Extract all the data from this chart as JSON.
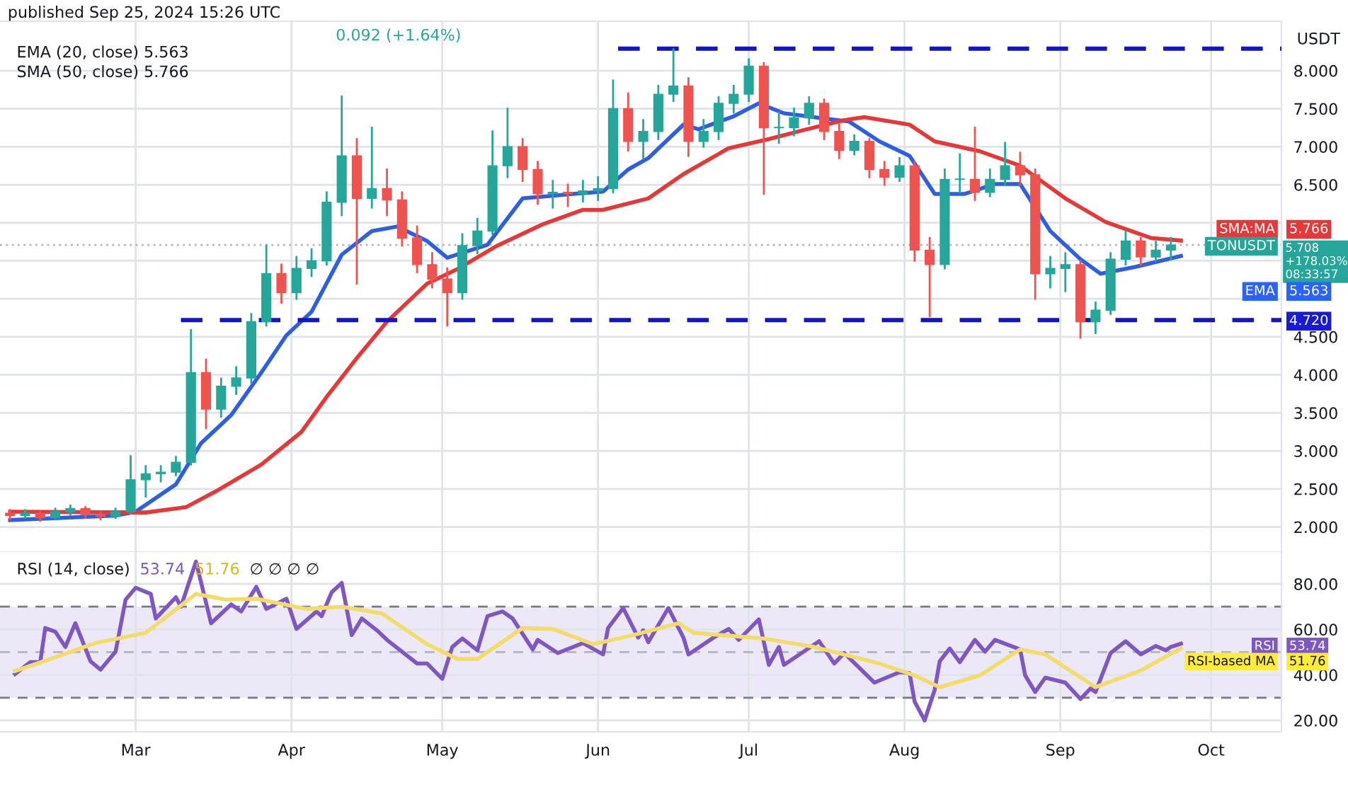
{
  "chart_data": [
    {
      "type": "candlestick",
      "x": [
        "2024-02-05",
        "2024-02-08",
        "2024-02-11",
        "2024-02-14",
        "2024-02-17",
        "2024-02-20",
        "2024-02-23",
        "2024-02-26",
        "2024-02-29",
        "2024-03-03",
        "2024-03-06",
        "2024-03-09",
        "2024-03-12",
        "2024-03-15",
        "2024-03-18",
        "2024-03-21",
        "2024-03-24",
        "2024-03-27",
        "2024-03-30",
        "2024-04-02",
        "2024-04-05",
        "2024-04-08",
        "2024-04-11",
        "2024-04-14",
        "2024-04-17",
        "2024-04-20",
        "2024-04-23",
        "2024-04-26",
        "2024-04-29",
        "2024-05-02",
        "2024-05-05",
        "2024-05-08",
        "2024-05-11",
        "2024-05-14",
        "2024-05-17",
        "2024-05-20",
        "2024-05-23",
        "2024-05-26",
        "2024-05-29",
        "2024-06-01",
        "2024-06-04",
        "2024-06-07",
        "2024-06-10",
        "2024-06-13",
        "2024-06-16",
        "2024-06-19",
        "2024-06-22",
        "2024-06-25",
        "2024-06-28",
        "2024-07-01",
        "2024-07-04",
        "2024-07-07",
        "2024-07-10",
        "2024-07-13",
        "2024-07-16",
        "2024-07-19",
        "2024-07-22",
        "2024-07-25",
        "2024-07-28",
        "2024-07-31",
        "2024-08-03",
        "2024-08-06",
        "2024-08-09",
        "2024-08-12",
        "2024-08-15",
        "2024-08-18",
        "2024-08-21",
        "2024-08-24",
        "2024-08-27",
        "2024-08-30",
        "2024-09-02",
        "2024-09-05",
        "2024-09-08",
        "2024-09-11",
        "2024-09-14",
        "2024-09-17",
        "2024-09-20",
        "2024-09-23"
      ],
      "ohlc": [
        [
          2.18,
          2.22,
          2.1,
          2.15
        ],
        [
          2.15,
          2.22,
          2.12,
          2.18
        ],
        [
          2.18,
          2.2,
          2.08,
          2.12
        ],
        [
          2.12,
          2.24,
          2.1,
          2.2
        ],
        [
          2.2,
          2.28,
          2.16,
          2.24
        ],
        [
          2.24,
          2.26,
          2.12,
          2.16
        ],
        [
          2.16,
          2.2,
          2.1,
          2.14
        ],
        [
          2.14,
          2.24,
          2.12,
          2.2
        ],
        [
          2.2,
          2.93,
          2.18,
          2.62
        ],
        [
          2.62,
          2.8,
          2.4,
          2.7
        ],
        [
          2.7,
          2.8,
          2.6,
          2.72
        ],
        [
          2.72,
          2.92,
          2.68,
          2.85
        ],
        [
          2.85,
          4.59,
          2.82,
          4.03
        ],
        [
          4.03,
          4.2,
          3.3,
          3.55
        ],
        [
          3.55,
          3.95,
          3.45,
          3.85
        ],
        [
          3.85,
          4.1,
          3.75,
          3.96
        ],
        [
          3.96,
          4.8,
          3.9,
          4.7
        ],
        [
          4.7,
          5.7,
          4.65,
          5.33
        ],
        [
          5.33,
          5.45,
          4.95,
          5.08
        ],
        [
          5.08,
          5.55,
          5.0,
          5.4
        ],
        [
          5.4,
          5.65,
          5.3,
          5.5
        ],
        [
          5.5,
          6.4,
          5.45,
          6.27
        ],
        [
          6.27,
          7.66,
          6.1,
          6.88
        ],
        [
          6.88,
          7.1,
          5.2,
          6.32
        ],
        [
          6.32,
          7.25,
          6.2,
          6.45
        ],
        [
          6.45,
          6.7,
          6.1,
          6.3
        ],
        [
          6.3,
          6.4,
          5.7,
          5.8
        ],
        [
          5.8,
          5.95,
          5.35,
          5.45
        ],
        [
          5.45,
          5.6,
          5.15,
          5.26
        ],
        [
          5.26,
          5.4,
          4.65,
          5.08
        ],
        [
          5.08,
          5.85,
          5.0,
          5.7
        ],
        [
          5.7,
          6.05,
          5.6,
          5.89
        ],
        [
          5.89,
          7.2,
          5.85,
          6.75
        ],
        [
          6.75,
          7.5,
          6.6,
          7.0
        ],
        [
          7.0,
          7.1,
          6.55,
          6.7
        ],
        [
          6.7,
          6.8,
          6.25,
          6.38
        ],
        [
          6.38,
          6.55,
          6.2,
          6.4
        ],
        [
          6.4,
          6.5,
          6.22,
          6.38
        ],
        [
          6.38,
          6.55,
          6.28,
          6.42
        ],
        [
          6.42,
          6.6,
          6.3,
          6.45
        ],
        [
          6.45,
          7.87,
          6.4,
          7.5
        ],
        [
          7.5,
          7.7,
          6.95,
          7.07
        ],
        [
          7.07,
          7.35,
          6.85,
          7.2
        ],
        [
          7.2,
          7.8,
          7.1,
          7.69
        ],
        [
          7.69,
          8.28,
          7.6,
          7.8
        ],
        [
          7.8,
          7.9,
          6.88,
          7.07
        ],
        [
          7.07,
          7.35,
          7.0,
          7.2
        ],
        [
          7.2,
          7.65,
          7.1,
          7.57
        ],
        [
          7.57,
          7.8,
          7.45,
          7.69
        ],
        [
          7.69,
          8.15,
          7.6,
          8.06
        ],
        [
          8.06,
          8.1,
          6.38,
          7.25
        ],
        [
          7.25,
          7.45,
          7.05,
          7.25
        ],
        [
          7.25,
          7.5,
          7.15,
          7.38
        ],
        [
          7.38,
          7.65,
          7.3,
          7.57
        ],
        [
          7.57,
          7.62,
          7.1,
          7.2
        ],
        [
          7.2,
          7.3,
          6.85,
          6.95
        ],
        [
          6.95,
          7.15,
          6.9,
          7.07
        ],
        [
          7.07,
          7.1,
          6.6,
          6.7
        ],
        [
          6.7,
          6.8,
          6.5,
          6.6
        ],
        [
          6.6,
          6.85,
          6.55,
          6.75
        ],
        [
          6.75,
          6.8,
          5.5,
          5.64
        ],
        [
          5.64,
          5.8,
          4.77,
          5.45
        ],
        [
          5.45,
          6.7,
          5.4,
          6.57
        ],
        [
          6.57,
          6.9,
          6.4,
          6.57
        ],
        [
          6.57,
          7.25,
          6.3,
          6.4
        ],
        [
          6.4,
          6.7,
          6.35,
          6.57
        ],
        [
          6.57,
          7.05,
          6.5,
          6.75
        ],
        [
          6.75,
          6.92,
          6.5,
          6.63
        ],
        [
          6.63,
          6.7,
          5.0,
          5.33
        ],
        [
          5.33,
          5.55,
          5.15,
          5.4
        ],
        [
          5.4,
          5.6,
          5.1,
          5.45
        ],
        [
          5.45,
          5.5,
          4.49,
          4.7
        ],
        [
          4.7,
          4.95,
          4.55,
          4.85
        ],
        [
          4.85,
          5.6,
          4.8,
          5.52
        ],
        [
          5.52,
          5.89,
          5.45,
          5.76
        ],
        [
          5.76,
          5.8,
          5.45,
          5.55
        ],
        [
          5.55,
          5.75,
          5.5,
          5.64
        ],
        [
          5.64,
          5.8,
          5.52,
          5.708
        ]
      ],
      "colors": [
        "#ef5350",
        "#26a69a",
        "#ef5350",
        "#26a69a",
        "#26a69a",
        "#ef5350",
        "#ef5350",
        "#26a69a",
        "#26a69a",
        "#26a69a",
        "#26a69a",
        "#26a69a",
        "#26a69a",
        "#ef5350",
        "#26a69a",
        "#26a69a",
        "#26a69a",
        "#26a69a",
        "#ef5350",
        "#26a69a",
        "#26a69a",
        "#26a69a",
        "#26a69a",
        "#ef5350",
        "#26a69a",
        "#ef5350",
        "#ef5350",
        "#ef5350",
        "#ef5350",
        "#ef5350",
        "#26a69a",
        "#26a69a",
        "#26a69a",
        "#26a69a",
        "#ef5350",
        "#ef5350",
        "#26a69a",
        "#ef5350",
        "#26a69a",
        "#26a69a",
        "#26a69a",
        "#ef5350",
        "#26a69a",
        "#26a69a",
        "#26a69a",
        "#ef5350",
        "#26a69a",
        "#26a69a",
        "#26a69a",
        "#26a69a",
        "#ef5350",
        "#26a69a",
        "#26a69a",
        "#26a69a",
        "#ef5350",
        "#ef5350",
        "#26a69a",
        "#ef5350",
        "#ef5350",
        "#26a69a",
        "#ef5350",
        "#ef5350",
        "#26a69a",
        "#26a69a",
        "#ef5350",
        "#26a69a",
        "#26a69a",
        "#ef5350",
        "#ef5350",
        "#26a69a",
        "#26a69a",
        "#ef5350",
        "#26a69a",
        "#26a69a",
        "#26a69a",
        "#ef5350",
        "#26a69a",
        "#26a69a"
      ],
      "series": [
        {
          "type": "line",
          "color": "#2f5fe0",
          "x": [
            "2024-02-05",
            "2024-02-26",
            "2024-03-01",
            "2024-03-09",
            "2024-03-14",
            "2024-03-20",
            "2024-03-26",
            "2024-03-31",
            "2024-04-05",
            "2024-04-11",
            "2024-04-17",
            "2024-04-22",
            "2024-04-28",
            "2024-05-02",
            "2024-05-10",
            "2024-05-17",
            "2024-05-27",
            "2024-06-02",
            "2024-06-07",
            "2024-06-11",
            "2024-06-18",
            "2024-06-21",
            "2024-06-28",
            "2024-07-03",
            "2024-07-08",
            "2024-07-15",
            "2024-07-21",
            "2024-07-27",
            "2024-08-02",
            "2024-08-07",
            "2024-08-13",
            "2024-08-19",
            "2024-08-24",
            "2024-08-30",
            "2024-09-05",
            "2024-09-09",
            "2024-09-16",
            "2024-09-25"
          ],
          "values": [
            2.09,
            2.15,
            2.2,
            2.56,
            3.1,
            3.47,
            4.03,
            4.52,
            4.83,
            5.58,
            5.89,
            5.95,
            5.76,
            5.54,
            5.71,
            6.32,
            6.38,
            6.41,
            6.7,
            6.85,
            7.29,
            7.23,
            7.4,
            7.57,
            7.44,
            7.38,
            7.33,
            7.07,
            6.88,
            6.38,
            6.38,
            6.51,
            6.51,
            5.89,
            5.52,
            5.33,
            5.42,
            5.563
          ]
        },
        {
          "type": "line",
          "color": "#e53939",
          "x": [
            "2024-02-05",
            "2024-03-03",
            "2024-03-11",
            "2024-03-17",
            "2024-03-26",
            "2024-04-03",
            "2024-04-08",
            "2024-04-14",
            "2024-04-20",
            "2024-04-28",
            "2024-05-04",
            "2024-05-12",
            "2024-05-21",
            "2024-05-29",
            "2024-06-02",
            "2024-06-11",
            "2024-06-18",
            "2024-06-27",
            "2024-07-05",
            "2024-07-12",
            "2024-07-20",
            "2024-07-24",
            "2024-08-02",
            "2024-08-07",
            "2024-08-16",
            "2024-08-24",
            "2024-09-02",
            "2024-09-10",
            "2024-09-19",
            "2024-09-25"
          ],
          "values": [
            2.2,
            2.19,
            2.26,
            2.47,
            2.82,
            3.25,
            3.71,
            4.22,
            4.7,
            5.2,
            5.39,
            5.7,
            5.98,
            6.17,
            6.17,
            6.32,
            6.64,
            6.98,
            7.1,
            7.22,
            7.35,
            7.39,
            7.29,
            7.07,
            6.94,
            6.75,
            6.32,
            6.01,
            5.8,
            5.766
          ]
        },
        {
          "type": "line",
          "color": "#1515c8",
          "line_style": "dashed",
          "x": [
            "2024-03-10",
            "2024-10-15"
          ],
          "values": [
            4.72,
            4.72
          ]
        },
        {
          "type": "line",
          "color": "#1515c8",
          "line_style": "dashed",
          "x": [
            "2024-06-05",
            "2024-10-15"
          ],
          "values": [
            8.29,
            8.29
          ]
        }
      ],
      "ref_lines": [
        {
          "axis": "y",
          "value": 5.708,
          "color": "#b2b5be",
          "line_style": "dotted"
        }
      ],
      "xlim": [
        "2024-02-03",
        "2024-10-15"
      ],
      "ylim": [
        1.67,
        8.65
      ],
      "xticks": [
        {
          "value": "2024-03-01",
          "label": null
        },
        {
          "value": "2024-04-01",
          "label": null
        },
        {
          "value": "2024-05-01",
          "label": null
        },
        {
          "value": "2024-06-01",
          "label": null
        },
        {
          "value": "2024-07-01",
          "label": null
        },
        {
          "value": "2024-08-01",
          "label": null
        },
        {
          "value": "2024-09-01",
          "label": null
        },
        {
          "value": "2024-10-01",
          "label": null
        }
      ],
      "yticks": [
        {
          "value": 2,
          "label": "2.000"
        },
        {
          "value": 2.5,
          "label": "2.500"
        },
        {
          "value": 3,
          "label": "3.000"
        },
        {
          "value": 3.5,
          "label": "3.500"
        },
        {
          "value": 4,
          "label": "4.000"
        },
        {
          "value": 4.5,
          "label": "4.500"
        },
        {
          "value": 5,
          "label": null
        },
        {
          "value": 5.5,
          "label": null
        },
        {
          "value": 6,
          "label": null
        },
        {
          "value": 6.5,
          "label": "6.500"
        },
        {
          "value": 7,
          "label": "7.000"
        },
        {
          "value": 7.5,
          "label": "7.500"
        },
        {
          "value": 8,
          "label": "8.000"
        }
      ],
      "tick_labels": "y",
      "grid": true,
      "annotations": [
        "published Sep 25, 2024 15:26 UTC",
        "0.092 (+1.64%)",
        "EMA (20, close) 5.563",
        "SMA (50, close) 5.766",
        "USDT",
        "SMA:MA",
        "5.766",
        "TONUSDT",
        "5.708\n+178.03%\n08:33:57",
        "EMA",
        "5.563",
        "4.720"
      ]
    },
    {
      "type": "line",
      "series": [
        {
          "color": "#7e57c2",
          "x": [
            "2024-02-06",
            "2024-02-09",
            "2024-02-11",
            "2024-02-12",
            "2024-02-14",
            "2024-02-16",
            "2024-02-18",
            "2024-02-21",
            "2024-02-23",
            "2024-02-26",
            "2024-02-28",
            "2024-03-01",
            "2024-03-04",
            "2024-03-05",
            "2024-03-09",
            "2024-03-10",
            "2024-03-13",
            "2024-03-16",
            "2024-03-20",
            "2024-03-22",
            "2024-03-25",
            "2024-03-27",
            "2024-03-31",
            "2024-04-02",
            "2024-04-06",
            "2024-04-07",
            "2024-04-09",
            "2024-04-11",
            "2024-04-13",
            "2024-04-15",
            "2024-04-18",
            "2024-04-20",
            "2024-04-26",
            "2024-04-28",
            "2024-05-01",
            "2024-05-03",
            "2024-05-05",
            "2024-05-08",
            "2024-05-10",
            "2024-05-13",
            "2024-05-15",
            "2024-05-19",
            "2024-05-20",
            "2024-05-24",
            "2024-05-29",
            "2024-06-02",
            "2024-06-03",
            "2024-06-06",
            "2024-06-09",
            "2024-06-10",
            "2024-06-11",
            "2024-06-15",
            "2024-06-18",
            "2024-06-19",
            "2024-06-24",
            "2024-06-27",
            "2024-06-29",
            "2024-07-03",
            "2024-07-05",
            "2024-07-07",
            "2024-07-08",
            "2024-07-15",
            "2024-07-18",
            "2024-07-20",
            "2024-07-26",
            "2024-07-31",
            "2024-08-02",
            "2024-08-03",
            "2024-08-05",
            "2024-08-07",
            "2024-08-08",
            "2024-08-10",
            "2024-08-12",
            "2024-08-15",
            "2024-08-17",
            "2024-08-19",
            "2024-08-24",
            "2024-08-25",
            "2024-08-27",
            "2024-08-29",
            "2024-09-02",
            "2024-09-05",
            "2024-09-07",
            "2024-09-08",
            "2024-09-11",
            "2024-09-14",
            "2024-09-17",
            "2024-09-20",
            "2024-09-22",
            "2024-09-23",
            "2024-09-25"
          ],
          "values": [
            40.4,
            45.6,
            45.6,
            60.6,
            59,
            52.3,
            62.7,
            46,
            42.3,
            50.2,
            73.1,
            78.3,
            75.6,
            64.8,
            74.1,
            70,
            89.8,
            62.7,
            71,
            67.9,
            78.7,
            69,
            73.5,
            60.2,
            67.9,
            65.8,
            76.3,
            80.4,
            57.5,
            64.8,
            59.6,
            55.4,
            45,
            45,
            38.3,
            52.3,
            56,
            50.8,
            65.8,
            67.9,
            64.8,
            51.2,
            55.4,
            49.6,
            54,
            49,
            60.6,
            69.4,
            56.4,
            59.6,
            54.4,
            69.4,
            56.4,
            49,
            56.4,
            60.2,
            55.4,
            64.4,
            44.4,
            52.3,
            44.4,
            54.8,
            45,
            49.6,
            36.6,
            41.2,
            40.8,
            28.3,
            20,
            33.5,
            46,
            51.6,
            45.6,
            55.4,
            50.2,
            55.4,
            51.2,
            39.8,
            32.5,
            38.8,
            36.6,
            29.4,
            34,
            32.5,
            49.6,
            54.8,
            49,
            52.7,
            50.8,
            52.3,
            53.74
          ]
        },
        {
          "color": "#f2dc6b",
          "x": [
            "2024-02-06",
            "2024-02-13",
            "2024-02-22",
            "2024-03-03",
            "2024-03-13",
            "2024-03-19",
            "2024-03-25",
            "2024-04-04",
            "2024-04-11",
            "2024-04-19",
            "2024-04-28",
            "2024-05-04",
            "2024-05-08",
            "2024-05-17",
            "2024-05-23",
            "2024-05-31",
            "2024-06-08",
            "2024-06-17",
            "2024-06-20",
            "2024-07-04",
            "2024-07-14",
            "2024-07-27",
            "2024-08-03",
            "2024-08-08",
            "2024-08-16",
            "2024-08-24",
            "2024-08-29",
            "2024-09-08",
            "2024-09-17",
            "2024-09-25"
          ],
          "values": [
            41.7,
            47,
            54,
            58.5,
            75.6,
            73.1,
            73.5,
            69,
            70,
            67,
            53.5,
            47,
            47,
            60.6,
            60.2,
            53.5,
            57.5,
            62.7,
            58.5,
            56,
            52.3,
            45,
            39.8,
            34.6,
            39.8,
            51.2,
            49,
            34.6,
            41.9,
            51.76
          ]
        }
      ],
      "bands": [
        {
          "axis": "y",
          "from": 30,
          "to": 70,
          "color": "#ede8f7"
        }
      ],
      "ref_lines": [
        {
          "axis": "y",
          "value": 70,
          "color": "#787b86",
          "line_style": "dashed"
        },
        {
          "axis": "y",
          "value": 50,
          "color": "#b2b5be",
          "line_style": "dashed"
        },
        {
          "axis": "y",
          "value": 30,
          "color": "#787b86",
          "line_style": "dashed"
        }
      ],
      "xlim": [
        "2024-02-03",
        "2024-10-15"
      ],
      "ylim": [
        15,
        94
      ],
      "xticks": [
        {
          "value": "2024-03-01",
          "label": "Mar"
        },
        {
          "value": "2024-04-01",
          "label": "Apr"
        },
        {
          "value": "2024-05-01",
          "label": "May"
        },
        {
          "value": "2024-06-01",
          "label": "Jun"
        },
        {
          "value": "2024-07-01",
          "label": "Jul"
        },
        {
          "value": "2024-08-01",
          "label": "Aug"
        },
        {
          "value": "2024-09-01",
          "label": "Sep"
        },
        {
          "value": "2024-10-01",
          "label": "Oct"
        }
      ],
      "yticks": [
        {
          "value": 20,
          "label": "20.00"
        },
        {
          "value": 40,
          "label": "40.00"
        },
        {
          "value": 60,
          "label": "60.00"
        },
        {
          "value": 80,
          "label": "80.00"
        }
      ],
      "grid": true,
      "annotations": [
        "RSI (14, close)",
        "53.74",
        "51.76",
        "∅ ∅ ∅ ∅",
        "RSI",
        "53.74",
        "RSI-based MA",
        "51.76"
      ]
    }
  ]
}
